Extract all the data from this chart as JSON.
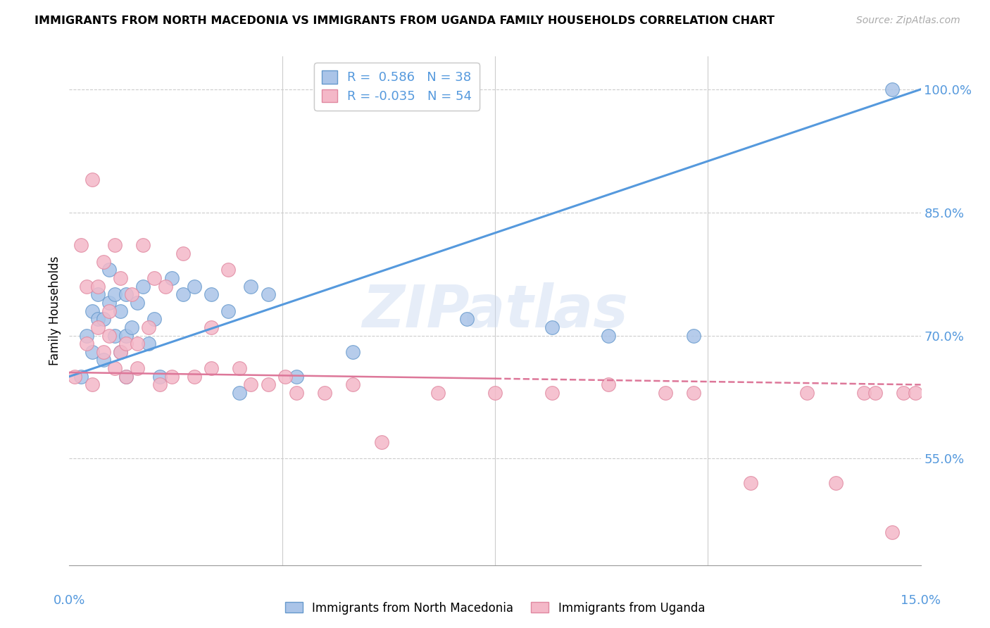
{
  "title": "IMMIGRANTS FROM NORTH MACEDONIA VS IMMIGRANTS FROM UGANDA FAMILY HOUSEHOLDS CORRELATION CHART",
  "source": "Source: ZipAtlas.com",
  "ylabel": "Family Households",
  "y_ticks": [
    55.0,
    70.0,
    85.0,
    100.0
  ],
  "y_tick_labels": [
    "55.0%",
    "70.0%",
    "85.0%",
    "100.0%"
  ],
  "xlim": [
    0.0,
    15.0
  ],
  "ylim": [
    42.0,
    104.0
  ],
  "blue_R": 0.586,
  "blue_N": 38,
  "pink_R": -0.035,
  "pink_N": 54,
  "blue_color": "#aac4e8",
  "pink_color": "#f4b8c8",
  "blue_edge_color": "#6699cc",
  "pink_edge_color": "#e088a0",
  "blue_line_color": "#5599dd",
  "pink_line_color": "#dd7799",
  "tick_color": "#5599dd",
  "legend_text_color": "#5599dd",
  "watermark": "ZIPatlas",
  "blue_line_x0": 0.0,
  "blue_line_y0": 65.0,
  "blue_line_x1": 15.0,
  "blue_line_y1": 100.0,
  "pink_line_x0": 0.0,
  "pink_line_y0": 65.5,
  "pink_line_x1": 15.0,
  "pink_line_y1": 64.0,
  "pink_solid_end": 7.5,
  "blue_points_x": [
    0.2,
    0.3,
    0.4,
    0.4,
    0.5,
    0.5,
    0.6,
    0.6,
    0.7,
    0.7,
    0.8,
    0.8,
    0.9,
    0.9,
    1.0,
    1.0,
    1.0,
    1.1,
    1.2,
    1.3,
    1.4,
    1.5,
    1.6,
    1.8,
    2.0,
    2.2,
    2.5,
    2.8,
    3.0,
    3.2,
    3.5,
    4.0,
    5.0,
    7.0,
    8.5,
    9.5,
    11.0,
    14.5
  ],
  "blue_points_y": [
    65,
    70,
    68,
    73,
    72,
    75,
    67,
    72,
    74,
    78,
    70,
    75,
    68,
    73,
    65,
    70,
    75,
    71,
    74,
    76,
    69,
    72,
    65,
    77,
    75,
    76,
    75,
    73,
    63,
    76,
    75,
    65,
    68,
    72,
    71,
    70,
    70,
    100
  ],
  "pink_points_x": [
    0.1,
    0.2,
    0.3,
    0.3,
    0.4,
    0.4,
    0.5,
    0.5,
    0.6,
    0.6,
    0.7,
    0.7,
    0.8,
    0.8,
    0.9,
    0.9,
    1.0,
    1.0,
    1.1,
    1.2,
    1.2,
    1.3,
    1.4,
    1.5,
    1.6,
    1.7,
    1.8,
    2.0,
    2.2,
    2.5,
    2.5,
    2.8,
    3.0,
    3.2,
    3.5,
    3.8,
    4.0,
    4.5,
    5.0,
    5.5,
    6.5,
    7.5,
    8.5,
    9.5,
    10.5,
    11.0,
    12.0,
    13.0,
    13.5,
    14.0,
    14.2,
    14.5,
    14.7,
    14.9
  ],
  "pink_points_y": [
    65,
    81,
    69,
    76,
    89,
    64,
    71,
    76,
    68,
    79,
    70,
    73,
    66,
    81,
    68,
    77,
    65,
    69,
    75,
    66,
    69,
    81,
    71,
    77,
    64,
    76,
    65,
    80,
    65,
    71,
    66,
    78,
    66,
    64,
    64,
    65,
    63,
    63,
    64,
    57,
    63,
    63,
    63,
    64,
    63,
    63,
    52,
    63,
    52,
    63,
    63,
    46,
    63,
    63
  ]
}
